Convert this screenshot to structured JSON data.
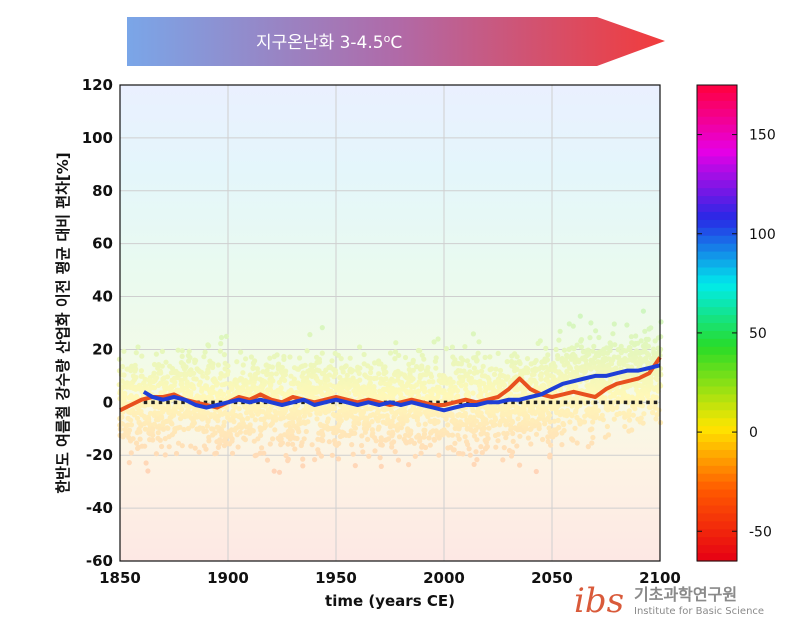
{
  "banner": {
    "label": "지구온난화 3-4.5",
    "unit_sup": "o",
    "unit": "C",
    "color_start": "#7aa6e8",
    "color_end": "#f23b3b"
  },
  "chart_data": {
    "type": "scatter+line",
    "title": "",
    "xlabel": "time (years CE)",
    "ylabel": "한반도 여름철 강수량 산업화 이전 평균 대비 편차[%]",
    "xlim": [
      1850,
      2100
    ],
    "ylim": [
      -60,
      120
    ],
    "xticks": [
      "1850",
      "1900",
      "1950",
      "2000",
      "2050",
      "2100"
    ],
    "yticks": [
      "-60",
      "-40",
      "-20",
      "0",
      "20",
      "40",
      "60",
      "80",
      "100",
      "120"
    ],
    "grid": true,
    "reference_line": {
      "y": 0,
      "style": "dotted",
      "color": "#222222"
    },
    "colorbar": {
      "ticks": [
        "-50",
        "0",
        "50",
        "100",
        "150"
      ],
      "range": [
        -65,
        175
      ]
    },
    "scatter_note": "ensemble members, one point per member-year, colored by value",
    "series": [
      {
        "name": "red",
        "color": "#e8501e",
        "x": [
          1850,
          1855,
          1860,
          1865,
          1870,
          1875,
          1880,
          1885,
          1890,
          1895,
          1900,
          1905,
          1910,
          1915,
          1920,
          1925,
          1930,
          1935,
          1940,
          1945,
          1950,
          1955,
          1960,
          1965,
          1970,
          1975,
          1980,
          1985,
          1990,
          1995,
          2000,
          2005,
          2010,
          2015,
          2020,
          2025,
          2030,
          2035,
          2040,
          2045,
          2050,
          2055,
          2060,
          2065,
          2070,
          2075,
          2080,
          2085,
          2090,
          2095,
          2100
        ],
        "values": [
          -3,
          -1,
          1,
          2,
          2,
          3,
          1,
          0,
          -1,
          -2,
          0,
          2,
          1,
          3,
          1,
          0,
          2,
          1,
          0,
          1,
          2,
          1,
          0,
          1,
          0,
          -1,
          0,
          1,
          0,
          -1,
          -1,
          0,
          1,
          0,
          1,
          2,
          5,
          9,
          5,
          3,
          2,
          3,
          4,
          3,
          2,
          5,
          7,
          8,
          9,
          11,
          17
        ]
      },
      {
        "name": "blue",
        "color": "#1f3fd6",
        "x": [
          1861,
          1865,
          1870,
          1875,
          1880,
          1885,
          1890,
          1895,
          1900,
          1905,
          1910,
          1915,
          1920,
          1925,
          1930,
          1935,
          1940,
          1945,
          1950,
          1955,
          1960,
          1965,
          1970,
          1975,
          1980,
          1985,
          1990,
          1995,
          2000,
          2005,
          2010,
          2015,
          2020,
          2025,
          2030,
          2035,
          2040,
          2045,
          2050,
          2055,
          2060,
          2065,
          2070,
          2075,
          2080,
          2085,
          2090,
          2095,
          2100
        ],
        "values": [
          4,
          2,
          1,
          2,
          1,
          -1,
          -2,
          -1,
          0,
          1,
          0,
          1,
          0,
          -1,
          0,
          1,
          -1,
          0,
          1,
          0,
          -1,
          0,
          -1,
          0,
          -1,
          0,
          -1,
          -2,
          -3,
          -2,
          -1,
          -1,
          0,
          0,
          1,
          1,
          2,
          3,
          5,
          7,
          8,
          9,
          10,
          10,
          11,
          12,
          12,
          13,
          14
        ]
      }
    ]
  },
  "logo": {
    "mark": "ibs",
    "korean": "기초과학연구원",
    "english": "Institute for Basic Science"
  }
}
